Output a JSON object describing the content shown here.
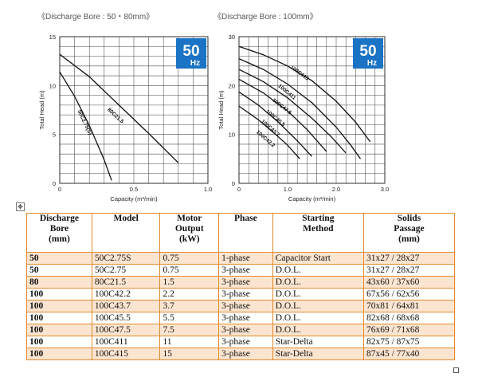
{
  "chart_data": [
    {
      "type": "line",
      "title": "《Discharge Bore : 50・80mm》",
      "badge": {
        "value": "50",
        "unit": "Hz",
        "color": "#1a73c4"
      },
      "xlabel": "Capacity (m³/min)",
      "ylabel": "Total Head (m)",
      "xlim": [
        0,
        1.0
      ],
      "ylim": [
        0,
        15
      ],
      "xticks": [
        {
          "v": 0,
          "label": "0"
        },
        {
          "v": 0.5,
          "label": "0.5"
        },
        {
          "v": 1.0,
          "label": "1.0"
        }
      ],
      "yticks": [
        {
          "v": 0,
          "label": "0"
        },
        {
          "v": 5,
          "label": "5"
        },
        {
          "v": 10,
          "label": "10"
        },
        {
          "v": 15,
          "label": "15"
        }
      ],
      "grid_x_step": 0.1,
      "grid_y_step": 1,
      "grid": true,
      "series": [
        {
          "name": "80C21.5",
          "x": [
            0,
            0.2,
            0.4,
            0.6,
            0.8
          ],
          "y": [
            13.2,
            10.9,
            8.0,
            5.1,
            2.1
          ],
          "label_x": 0.32,
          "label_y": 7.5
        },
        {
          "name": "50C2.75(S)",
          "x": [
            0,
            0.1,
            0.2,
            0.3,
            0.35
          ],
          "y": [
            11.4,
            8.9,
            5.9,
            2.4,
            0.3
          ],
          "label_x": 0.12,
          "label_y": 7.4
        }
      ]
    },
    {
      "type": "line",
      "title": "《Discharge Bore : 100mm》",
      "badge": {
        "value": "50",
        "unit": "Hz",
        "color": "#1a73c4"
      },
      "xlabel": "Capacity (m³/min)",
      "ylabel": "Total Head (m)",
      "xlim": [
        0,
        3.0
      ],
      "ylim": [
        0,
        30
      ],
      "xticks": [
        {
          "v": 0,
          "label": "0"
        },
        {
          "v": 1,
          "label": "1.0"
        },
        {
          "v": 2,
          "label": "2.0"
        },
        {
          "v": 3,
          "label": "3.0"
        }
      ],
      "yticks": [
        {
          "v": 0,
          "label": "0"
        },
        {
          "v": 10,
          "label": "10"
        },
        {
          "v": 20,
          "label": "20"
        },
        {
          "v": 30,
          "label": "30"
        }
      ],
      "grid_x_step": 0.2,
      "grid_y_step": 2,
      "grid": true,
      "series": [
        {
          "name": "100C415",
          "x": [
            0,
            0.5,
            1.0,
            1.5,
            2.0,
            2.4,
            2.7
          ],
          "y": [
            28.0,
            26.3,
            24.0,
            21.0,
            16.8,
            12.5,
            8.5
          ],
          "label_x": 1.05,
          "label_y": 23.6
        },
        {
          "name": "100C411",
          "x": [
            0,
            0.5,
            1.0,
            1.5,
            2.0,
            2.3,
            2.5
          ],
          "y": [
            25.5,
            23.3,
            20.3,
            16.5,
            11.5,
            7.8,
            5.0
          ],
          "label_x": 0.8,
          "label_y": 19.8
        },
        {
          "name": "100C47.5",
          "x": [
            0,
            0.5,
            1.0,
            1.5,
            1.9,
            2.2
          ],
          "y": [
            23.3,
            20.8,
            17.5,
            13.3,
            9.5,
            6.2
          ],
          "label_x": 0.68,
          "label_y": 16.9
        },
        {
          "name": "100C45.5",
          "x": [
            0,
            0.5,
            1.0,
            1.4,
            1.8
          ],
          "y": [
            21.3,
            18.5,
            14.8,
            11.0,
            6.5
          ],
          "label_x": 0.55,
          "label_y": 14.6
        },
        {
          "name": "100C43.7",
          "x": [
            0,
            0.4,
            0.8,
            1.2,
            1.5
          ],
          "y": [
            18.7,
            16.0,
            12.6,
            8.7,
            5.5
          ],
          "label_x": 0.45,
          "label_y": 12.6
        },
        {
          "name": "100C42.2",
          "x": [
            0,
            0.4,
            0.8,
            1.0,
            1.25
          ],
          "y": [
            15.8,
            13.0,
            9.6,
            7.8,
            5.0
          ],
          "label_x": 0.35,
          "label_y": 10.4
        }
      ]
    }
  ],
  "table": {
    "anchor_icon": "move-anchor-icon",
    "headers": [
      "Discharge\nBore\n(mm)",
      "Model",
      "Motor\nOutput\n(kW)",
      "Phase",
      "Starting\nMethod",
      "Solids\nPassage\n(mm)"
    ],
    "rows": [
      [
        "50",
        "50C2.75S",
        "0.75",
        "1-phase",
        "Capacitor Start",
        "31x27 / 28x27"
      ],
      [
        "50",
        "50C2.75",
        "0.75",
        "3-phase",
        "D.O.L.",
        "31x27 / 28x27"
      ],
      [
        "80",
        "80C21.5",
        "1.5",
        "3-phase",
        "D.O.L.",
        "43x60 / 37x60"
      ],
      [
        "100",
        "100C42.2",
        "2.2",
        "3-phase",
        "D.O.L.",
        "67x56 / 62x56"
      ],
      [
        "100",
        "100C43.7",
        "3.7",
        "3-phase",
        "D.O.L.",
        "70x81 / 64x81"
      ],
      [
        "100",
        "100C45.5",
        "5.5",
        "3-phase",
        "D.O.L.",
        "82x68 / 68x68"
      ],
      [
        "100",
        "100C47.5",
        "7.5",
        "3-phase",
        "D.O.L.",
        "76x69 / 71x68"
      ],
      [
        "100",
        "100C411",
        "11",
        "3-phase",
        "Star-Delta",
        "82x75 / 87x75"
      ],
      [
        "100",
        "100C415",
        "15",
        "3-phase",
        "Star-Delta",
        "87x45 / 77x40"
      ]
    ]
  }
}
